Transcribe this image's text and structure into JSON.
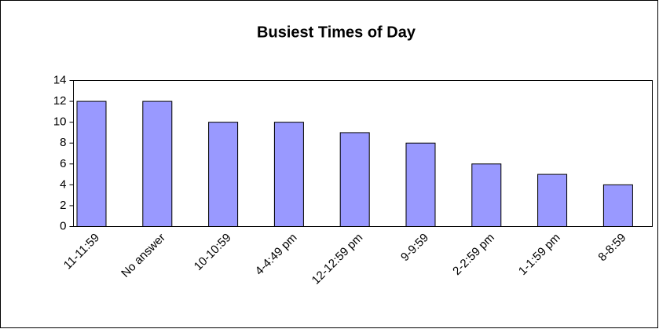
{
  "chart_data": {
    "type": "bar",
    "title": "Busiest Times of Day",
    "categories": [
      "11-11:59",
      "No answer",
      "10-10:59",
      "4-4:49 pm",
      "12-12:59 pm",
      "9-9:59",
      "2-2:59 pm",
      "1-1:59 pm",
      "8-8:59"
    ],
    "values": [
      12,
      12,
      10,
      10,
      9,
      8,
      6,
      5,
      4
    ],
    "color": "#9999ff",
    "ylim": [
      0,
      14
    ],
    "yticks": [
      0,
      2,
      4,
      6,
      8,
      10,
      12,
      14
    ],
    "grid": false
  }
}
